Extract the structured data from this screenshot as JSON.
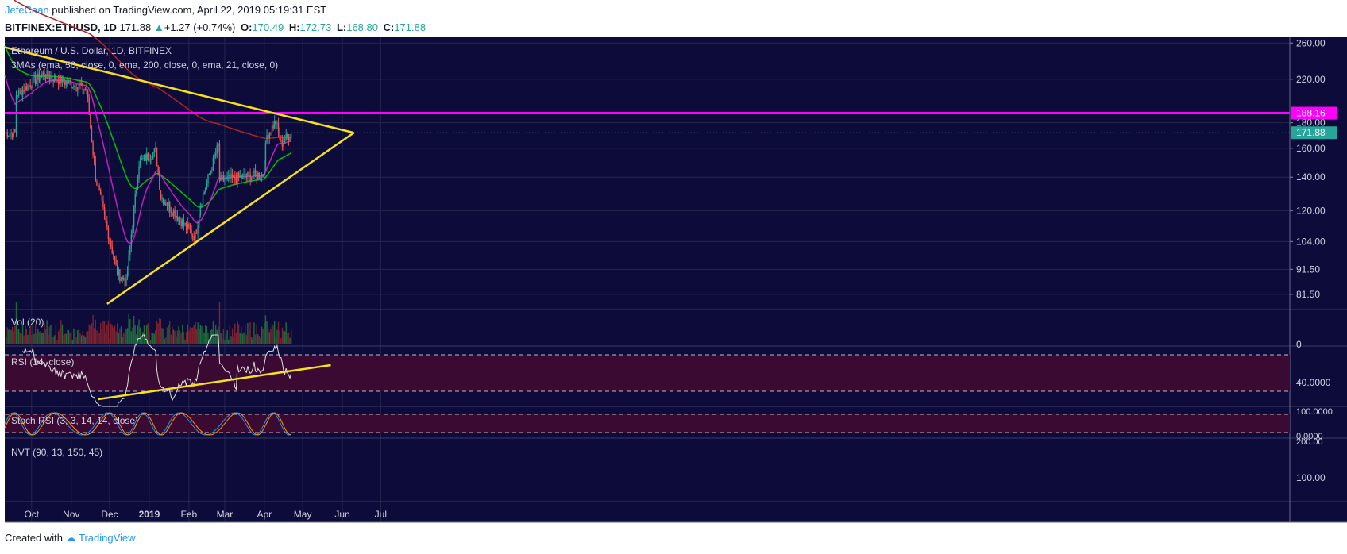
{
  "header": {
    "author": "JefeCaan",
    "published": "published on TradingView.com, April 22, 2019 05:19:31 EST",
    "symbol": "BITFINEX:ETHUSD, 1D",
    "last": "171.88",
    "change": "+1.27 (+0.74%)",
    "open_label": "O:",
    "open": "170.49",
    "high_label": "H:",
    "high": "172.73",
    "low_label": "L:",
    "low": "168.80",
    "close_label": "C:",
    "close": "171.88"
  },
  "footer": {
    "created_with": "Created with",
    "brand": "TradingView"
  },
  "colors": {
    "background": "#0d0b3a",
    "up_candle": "#26a69a",
    "down_candle": "#ef5350",
    "trendline": "#f5e21a",
    "resistance": "#ff00ff",
    "ema50": "#00c000",
    "ema200": "#b22222",
    "ema21": "#c020c0",
    "rsi_band": "#3a0a33",
    "price_tag": "#26a69a"
  },
  "chart_data": {
    "type": "candlestick",
    "title": "Ethereum / U.S. Dollar, 1D, BITFINEX",
    "indicator": "3MAs (ema, 50, close, 0, ema, 200, close, 0, ema, 21, close, 0)",
    "x_tick_labels": [
      "Oct",
      "Nov",
      "Dec",
      "2019",
      "Feb",
      "Mar",
      "Apr",
      "May",
      "Jun",
      "Jul"
    ],
    "y_tick_labels": [
      "260.00",
      "220.00",
      "180.00",
      "160.00",
      "140.00",
      "120.00",
      "104.00",
      "91.50",
      "81.50"
    ],
    "y_scale": "log",
    "ylim": [
      76,
      268
    ],
    "resistance_level": "188.16",
    "current_price": "171.88",
    "key_points": [
      {
        "date": "2018-09-19",
        "price": 205
      },
      {
        "date": "2018-10-10",
        "price": 225
      },
      {
        "date": "2018-11-13",
        "price": 210
      },
      {
        "date": "2018-11-20",
        "price": 140
      },
      {
        "date": "2018-12-07",
        "price": 90
      },
      {
        "date": "2018-12-14",
        "price": 86
      },
      {
        "date": "2018-12-24",
        "price": 150
      },
      {
        "date": "2019-01-06",
        "price": 158
      },
      {
        "date": "2019-01-10",
        "price": 128
      },
      {
        "date": "2019-02-06",
        "price": 106
      },
      {
        "date": "2019-02-10",
        "price": 124
      },
      {
        "date": "2019-02-24",
        "price": 162
      },
      {
        "date": "2019-02-25",
        "price": 138
      },
      {
        "date": "2019-03-31",
        "price": 142
      },
      {
        "date": "2019-04-03",
        "price": 170
      },
      {
        "date": "2019-04-10",
        "price": 181
      },
      {
        "date": "2019-04-14",
        "price": 163
      },
      {
        "date": "2019-04-22",
        "price": 171.88
      }
    ],
    "trendlines": [
      {
        "from": {
          "date": "2018-09-10",
          "price": 255
        },
        "to": {
          "date": "2019-06-10",
          "price": 171.88
        }
      },
      {
        "from": {
          "date": "2018-11-29",
          "price": 78
        },
        "to": {
          "date": "2019-06-10",
          "price": 171.88
        }
      }
    ],
    "indicators": [
      {
        "name": "Vol (20)",
        "tick_labels": [
          "0"
        ]
      },
      {
        "name": "RSI (14, close)",
        "tick_labels": [
          "40.0000"
        ]
      },
      {
        "name": "Stoch RSI (3, 3, 14, 14, close)",
        "tick_labels": [
          "100.0000",
          "0.0000"
        ]
      },
      {
        "name": "NVT (90, 13, 150, 45)",
        "tick_labels": [
          "200.00",
          "100.00"
        ]
      }
    ]
  }
}
